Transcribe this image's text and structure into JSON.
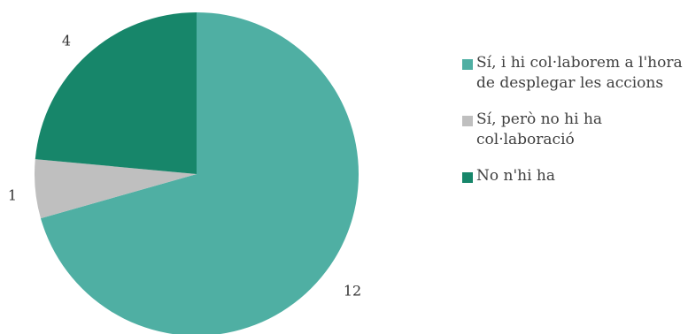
{
  "chart_data": {
    "type": "pie",
    "categories": [
      "Sí, i hi col·laborem a l'hora de desplegar les accions",
      "Sí, però no hi ha col·laboració",
      "No n'hi ha"
    ],
    "values": [
      12,
      1,
      4
    ],
    "data_labels": [
      "12",
      "1",
      "4"
    ],
    "colors": [
      "#4FAFA3",
      "#BFBFBF",
      "#17866A"
    ],
    "start_angle_deg": 0,
    "direction": "clockwise",
    "legend_position": "right"
  }
}
